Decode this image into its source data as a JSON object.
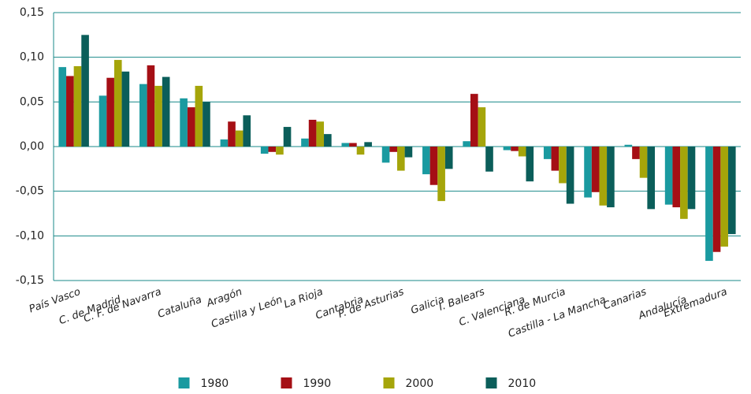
{
  "chart_data": {
    "type": "bar",
    "categories": [
      "País Vasco",
      "C. de Madrid",
      "C. F. de Navarra",
      "Cataluña",
      "Aragón",
      "Castilla y León",
      "La Rioja",
      "Cantabria",
      "P. de Asturias",
      "Galicia",
      "I. Balears",
      "C. Valenciana",
      "R. de Murcia",
      "Castilla - La Mancha",
      "Canarias",
      "Andalucía",
      "Extremadura"
    ],
    "series": [
      {
        "name": "1980",
        "color": "#1a9aa0",
        "values": [
          0.089,
          0.057,
          0.07,
          0.054,
          0.008,
          -0.008,
          0.009,
          0.004,
          -0.018,
          -0.031,
          0.006,
          -0.004,
          -0.014,
          -0.057,
          0.002,
          -0.065,
          -0.128
        ]
      },
      {
        "name": "1990",
        "color": "#a50f15",
        "values": [
          0.079,
          0.077,
          0.091,
          0.044,
          0.028,
          -0.006,
          0.03,
          0.004,
          -0.006,
          -0.043,
          0.059,
          -0.005,
          -0.027,
          -0.051,
          -0.014,
          -0.068,
          -0.118
        ]
      },
      {
        "name": "2000",
        "color": "#a5a50a",
        "values": [
          0.09,
          0.097,
          0.068,
          0.068,
          0.018,
          -0.009,
          0.028,
          -0.009,
          -0.027,
          -0.061,
          0.044,
          -0.011,
          -0.041,
          -0.066,
          -0.035,
          -0.081,
          -0.112
        ]
      },
      {
        "name": "2010",
        "color": "#0b5e5a",
        "values": [
          0.125,
          0.084,
          0.078,
          0.05,
          0.035,
          0.022,
          0.014,
          0.005,
          -0.012,
          -0.025,
          -0.028,
          -0.039,
          -0.064,
          -0.068,
          -0.07,
          -0.07,
          -0.098
        ]
      }
    ],
    "ylim": [
      -0.15,
      0.15
    ],
    "yticks": [
      {
        "value": -0.15,
        "label": "-0,15"
      },
      {
        "value": -0.1,
        "label": "-0,10"
      },
      {
        "value": -0.05,
        "label": "-0,05"
      },
      {
        "value": 0,
        "label": "0,00"
      },
      {
        "value": 0.05,
        "label": "0,05"
      },
      {
        "value": 0.1,
        "label": "0,10"
      },
      {
        "value": 0.15,
        "label": "0,15"
      }
    ],
    "grid": true
  }
}
